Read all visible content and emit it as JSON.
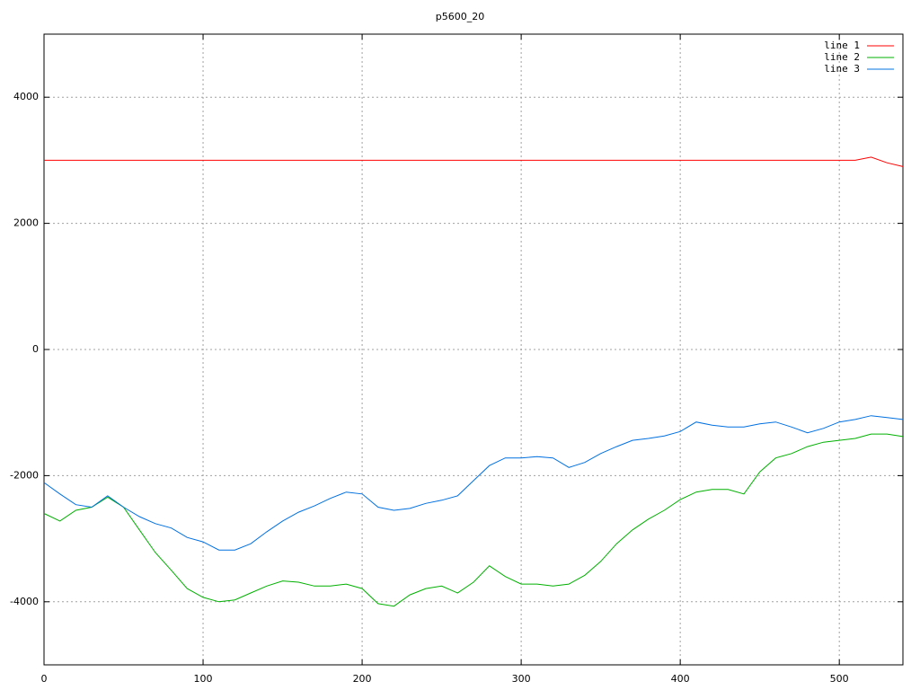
{
  "chart_data": {
    "type": "line",
    "title": "p5600_20",
    "x": [
      0,
      10,
      20,
      30,
      40,
      50,
      60,
      70,
      80,
      90,
      100,
      110,
      120,
      130,
      140,
      150,
      160,
      170,
      180,
      190,
      200,
      210,
      220,
      230,
      240,
      250,
      260,
      270,
      280,
      290,
      300,
      310,
      320,
      330,
      340,
      350,
      360,
      370,
      380,
      390,
      400,
      410,
      420,
      430,
      440,
      450,
      460,
      470,
      480,
      490,
      500,
      510,
      520,
      530,
      540
    ],
    "series": [
      {
        "name": "line 1",
        "color": "#ff0000",
        "values": [
          3000,
          3000,
          3000,
          3000,
          3000,
          3000,
          3000,
          3000,
          3000,
          3000,
          3000,
          3000,
          3000,
          3000,
          3000,
          3000,
          3000,
          3000,
          3000,
          3000,
          3000,
          3000,
          3000,
          3000,
          3000,
          3000,
          3000,
          3000,
          3000,
          3000,
          3000,
          3000,
          3000,
          3000,
          3000,
          3000,
          3000,
          3000,
          3000,
          3000,
          3000,
          3000,
          3000,
          3000,
          3000,
          3000,
          3000,
          3000,
          3000,
          3000,
          3000,
          3000,
          3050,
          2960,
          2900
        ]
      },
      {
        "name": "line 2",
        "color": "#00b000",
        "values": [
          -2600,
          -2720,
          -2550,
          -2500,
          -2340,
          -2500,
          -2860,
          -3220,
          -3500,
          -3790,
          -3930,
          -4000,
          -3970,
          -3860,
          -3750,
          -3670,
          -3690,
          -3750,
          -3750,
          -3720,
          -3790,
          -4030,
          -4070,
          -3890,
          -3790,
          -3750,
          -3860,
          -3690,
          -3430,
          -3600,
          -3720,
          -3720,
          -3750,
          -3720,
          -3580,
          -3360,
          -3080,
          -2860,
          -2690,
          -2550,
          -2380,
          -2260,
          -2220,
          -2220,
          -2290,
          -1940,
          -1720,
          -1650,
          -1540,
          -1470,
          -1440,
          -1410,
          -1340,
          -1340,
          -1380
        ]
      },
      {
        "name": "line 3",
        "color": "#0070e0",
        "values": [
          -2110,
          -2290,
          -2460,
          -2500,
          -2320,
          -2500,
          -2650,
          -2760,
          -2830,
          -2980,
          -3050,
          -3180,
          -3180,
          -3080,
          -2890,
          -2720,
          -2580,
          -2480,
          -2360,
          -2260,
          -2290,
          -2500,
          -2550,
          -2520,
          -2440,
          -2390,
          -2320,
          -2080,
          -1840,
          -1720,
          -1720,
          -1700,
          -1720,
          -1870,
          -1790,
          -1650,
          -1540,
          -1440,
          -1410,
          -1370,
          -1300,
          -1150,
          -1200,
          -1230,
          -1230,
          -1180,
          -1150,
          -1230,
          -1320,
          -1250,
          -1150,
          -1110,
          -1050,
          -1080,
          -1110
        ]
      }
    ],
    "xlim": [
      0,
      540
    ],
    "ylim": [
      -5000,
      5000
    ],
    "xticks": [
      0,
      100,
      200,
      300,
      400,
      500
    ],
    "yticks": [
      -4000,
      -2000,
      0,
      2000,
      4000
    ],
    "grid": true,
    "legend": "upper right"
  }
}
